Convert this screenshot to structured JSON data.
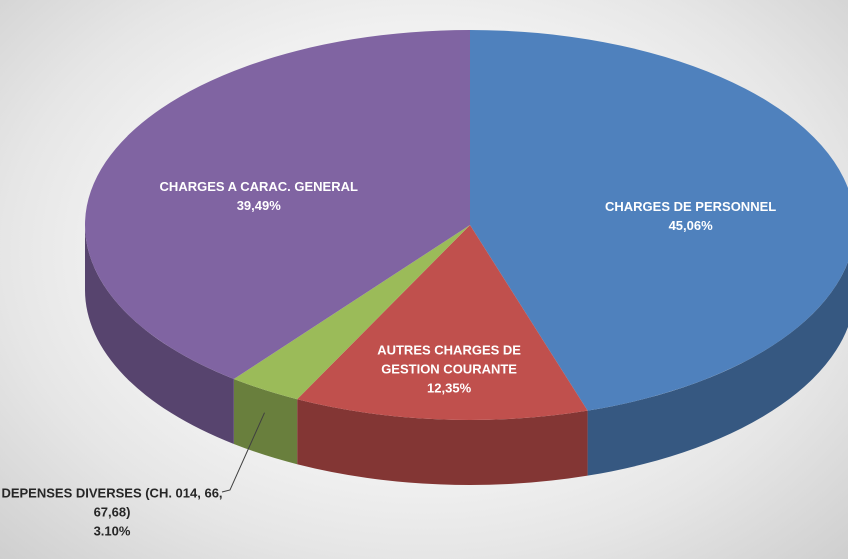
{
  "chart_data": {
    "type": "pie3d",
    "categories": [
      "CHARGES DE PERSONNEL",
      "AUTRES CHARGES DE GESTION COURANTE",
      "DEPENSES DIVERSES (CH. 014, 66, 67,68)",
      "CHARGES A CARAC. GENERAL"
    ],
    "values": [
      45.06,
      12.35,
      3.1,
      39.49
    ],
    "value_labels": [
      "45,06%",
      "12,35%",
      "3.10%",
      "39,49%"
    ],
    "colors": [
      "#4f81bd",
      "#c0504d",
      "#9bbb59",
      "#8064a2"
    ]
  }
}
